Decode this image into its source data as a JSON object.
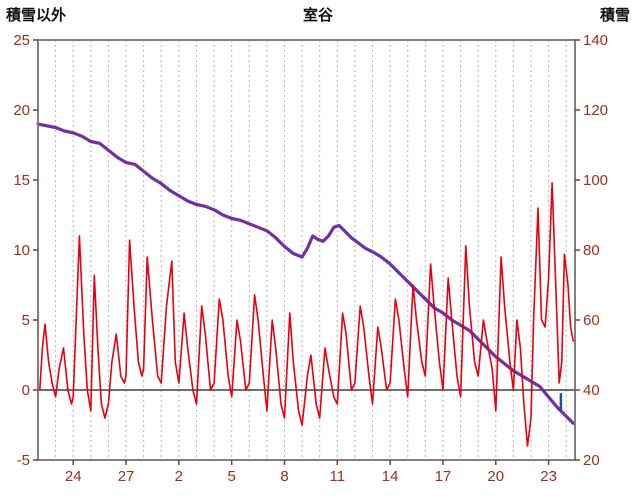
{
  "chart_data": {
    "type": "line",
    "title": "室谷",
    "left_axis": {
      "title": "積雪以外",
      "ticks": [
        25,
        20,
        15,
        10,
        5,
        0,
        -5
      ],
      "min": -5,
      "max": 25
    },
    "right_axis": {
      "title": "積雪",
      "ticks": [
        140,
        120,
        100,
        80,
        60,
        40,
        20
      ],
      "min": 20,
      "max": 140
    },
    "x_axis": {
      "tick_labels": [
        "24",
        "27",
        "2",
        "5",
        "8",
        "11",
        "14",
        "17",
        "20",
        "23"
      ],
      "tick_positions": [
        2,
        5,
        8,
        11,
        14,
        17,
        20,
        23,
        26,
        29
      ],
      "min": 0,
      "max": 30.5,
      "minor_grid_step": 1
    },
    "grid": {
      "vertical_dashed": true,
      "horizontal": false,
      "zero_line": true
    },
    "legend": "none",
    "colors": {
      "temperature": "#e60012",
      "snow_depth": "#7030a0",
      "snowfall_tick": "#1f4e9c",
      "grid": "#b3b3b3",
      "zero_line": "#595959",
      "frame": "#808080",
      "tick_label": "#9c2f1e",
      "background": "#ffffff"
    },
    "series": [
      {
        "name": "snow-depth",
        "axis": "right",
        "color": "#7030a0",
        "width": 3.2,
        "points": [
          [
            0,
            116
          ],
          [
            0.5,
            115.5
          ],
          [
            1,
            115
          ],
          [
            1.5,
            114
          ],
          [
            2,
            113.5
          ],
          [
            2.5,
            112.5
          ],
          [
            3,
            111
          ],
          [
            3.5,
            110.5
          ],
          [
            4,
            108.5
          ],
          [
            4.5,
            106.5
          ],
          [
            5,
            105
          ],
          [
            5.5,
            104.5
          ],
          [
            6,
            102.5
          ],
          [
            6.5,
            100.5
          ],
          [
            7,
            99
          ],
          [
            7.5,
            97
          ],
          [
            8,
            95.5
          ],
          [
            8.5,
            94
          ],
          [
            9,
            93
          ],
          [
            9.5,
            92.5
          ],
          [
            10,
            91.5
          ],
          [
            10.5,
            90
          ],
          [
            11,
            89
          ],
          [
            11.5,
            88.5
          ],
          [
            12,
            87.5
          ],
          [
            12.5,
            86.5
          ],
          [
            13,
            85.5
          ],
          [
            13.5,
            83.5
          ],
          [
            14,
            81
          ],
          [
            14.5,
            79
          ],
          [
            15,
            78
          ],
          [
            15.3,
            80.5
          ],
          [
            15.6,
            84
          ],
          [
            15.9,
            83
          ],
          [
            16.2,
            82.5
          ],
          [
            16.5,
            84
          ],
          [
            16.8,
            86.5
          ],
          [
            17.1,
            87
          ],
          [
            17.4,
            85.5
          ],
          [
            17.8,
            83.5
          ],
          [
            18.2,
            82
          ],
          [
            18.6,
            80.5
          ],
          [
            19,
            79.5
          ],
          [
            19.5,
            78
          ],
          [
            20,
            76
          ],
          [
            20.5,
            73.5
          ],
          [
            21,
            71
          ],
          [
            21.5,
            68.5
          ],
          [
            22,
            66
          ],
          [
            22.5,
            63.5
          ],
          [
            23,
            62
          ],
          [
            23.5,
            60
          ],
          [
            24,
            58.5
          ],
          [
            24.5,
            57
          ],
          [
            25,
            54.5
          ],
          [
            25.5,
            52
          ],
          [
            26,
            49.5
          ],
          [
            26.5,
            47.5
          ],
          [
            27,
            45.5
          ],
          [
            27.5,
            44
          ],
          [
            28,
            42.5
          ],
          [
            28.5,
            41
          ],
          [
            29,
            38
          ],
          [
            29.5,
            35
          ],
          [
            30,
            32.5
          ],
          [
            30.4,
            30.5
          ]
        ]
      },
      {
        "name": "temperature",
        "axis": "left",
        "color": "#e60012",
        "width": 1.6,
        "points": [
          [
            0.1,
            0
          ],
          [
            0.25,
            3
          ],
          [
            0.4,
            4.7
          ],
          [
            0.6,
            2
          ],
          [
            0.8,
            0.5
          ],
          [
            1.0,
            -0.5
          ],
          [
            1.2,
            1.5
          ],
          [
            1.45,
            3
          ],
          [
            1.7,
            0
          ],
          [
            1.9,
            -1
          ],
          [
            2.0,
            -0.5
          ],
          [
            2.2,
            6
          ],
          [
            2.35,
            11
          ],
          [
            2.6,
            4
          ],
          [
            2.8,
            0
          ],
          [
            3.0,
            -1.5
          ],
          [
            3.2,
            8.2
          ],
          [
            3.4,
            3
          ],
          [
            3.6,
            -1
          ],
          [
            3.8,
            -2
          ],
          [
            4.0,
            -1
          ],
          [
            4.2,
            2
          ],
          [
            4.45,
            4
          ],
          [
            4.7,
            1
          ],
          [
            4.9,
            0.5
          ],
          [
            5.0,
            1
          ],
          [
            5.2,
            10.7
          ],
          [
            5.45,
            6
          ],
          [
            5.7,
            2
          ],
          [
            5.9,
            1
          ],
          [
            6.0,
            1.5
          ],
          [
            6.2,
            9.5
          ],
          [
            6.5,
            5
          ],
          [
            6.8,
            1
          ],
          [
            7.0,
            0.5
          ],
          [
            7.3,
            6
          ],
          [
            7.6,
            9.2
          ],
          [
            7.8,
            2
          ],
          [
            8.0,
            0.5
          ],
          [
            8.3,
            5.5
          ],
          [
            8.5,
            3
          ],
          [
            8.8,
            0
          ],
          [
            9.0,
            -1
          ],
          [
            9.3,
            6
          ],
          [
            9.5,
            4
          ],
          [
            9.8,
            0
          ],
          [
            10.0,
            0.5
          ],
          [
            10.3,
            6.5
          ],
          [
            10.5,
            5
          ],
          [
            10.8,
            1
          ],
          [
            11.0,
            -0.5
          ],
          [
            11.3,
            5
          ],
          [
            11.5,
            3.5
          ],
          [
            11.8,
            0
          ],
          [
            12.0,
            0.5
          ],
          [
            12.3,
            6.8
          ],
          [
            12.5,
            5
          ],
          [
            12.8,
            1
          ],
          [
            13.0,
            -1.5
          ],
          [
            13.3,
            5
          ],
          [
            13.5,
            3
          ],
          [
            13.8,
            -1
          ],
          [
            14.0,
            -2
          ],
          [
            14.3,
            5.5
          ],
          [
            14.5,
            2
          ],
          [
            14.8,
            -1.5
          ],
          [
            15.0,
            -2.5
          ],
          [
            15.3,
            1
          ],
          [
            15.5,
            2.5
          ],
          [
            15.8,
            -1
          ],
          [
            16.0,
            -2
          ],
          [
            16.3,
            3
          ],
          [
            16.5,
            1.5
          ],
          [
            16.8,
            -0.5
          ],
          [
            17.0,
            -1
          ],
          [
            17.3,
            5.5
          ],
          [
            17.5,
            4
          ],
          [
            17.8,
            0
          ],
          [
            18.0,
            0.5
          ],
          [
            18.3,
            6
          ],
          [
            18.5,
            4.5
          ],
          [
            18.8,
            1
          ],
          [
            19.0,
            -1
          ],
          [
            19.3,
            4.5
          ],
          [
            19.5,
            3
          ],
          [
            19.8,
            0
          ],
          [
            20.0,
            0.5
          ],
          [
            20.3,
            6.5
          ],
          [
            20.5,
            5
          ],
          [
            20.8,
            1.5
          ],
          [
            21.0,
            -0.5
          ],
          [
            21.3,
            7.5
          ],
          [
            21.5,
            5
          ],
          [
            21.8,
            2
          ],
          [
            22.0,
            1
          ],
          [
            22.3,
            9
          ],
          [
            22.5,
            6
          ],
          [
            22.8,
            2
          ],
          [
            23.0,
            0
          ],
          [
            23.3,
            8
          ],
          [
            23.5,
            5
          ],
          [
            23.8,
            1
          ],
          [
            24.0,
            -0.5
          ],
          [
            24.3,
            10.3
          ],
          [
            24.5,
            6
          ],
          [
            24.8,
            2
          ],
          [
            25.0,
            1
          ],
          [
            25.3,
            5
          ],
          [
            25.5,
            3.5
          ],
          [
            25.8,
            1.5
          ],
          [
            26.0,
            -1.5
          ],
          [
            26.3,
            9.5
          ],
          [
            26.5,
            6
          ],
          [
            26.8,
            2
          ],
          [
            27.0,
            0
          ],
          [
            27.2,
            5
          ],
          [
            27.4,
            3
          ],
          [
            27.6,
            -1
          ],
          [
            27.8,
            -4
          ],
          [
            28.0,
            -2
          ],
          [
            28.15,
            5
          ],
          [
            28.4,
            13
          ],
          [
            28.6,
            5
          ],
          [
            28.8,
            4.5
          ],
          [
            29.0,
            8
          ],
          [
            29.2,
            14.8
          ],
          [
            29.45,
            6
          ],
          [
            29.6,
            0.5
          ],
          [
            29.75,
            2
          ],
          [
            29.9,
            9.7
          ],
          [
            30.1,
            7.5
          ],
          [
            30.25,
            4.5
          ],
          [
            30.4,
            3.5
          ]
        ]
      },
      {
        "name": "snowfall-tick",
        "axis": "left",
        "color": "#1f4e9c",
        "width": 2.5,
        "points": [
          [
            29.7,
            -0.3
          ],
          [
            29.7,
            -1.4
          ]
        ]
      }
    ]
  }
}
